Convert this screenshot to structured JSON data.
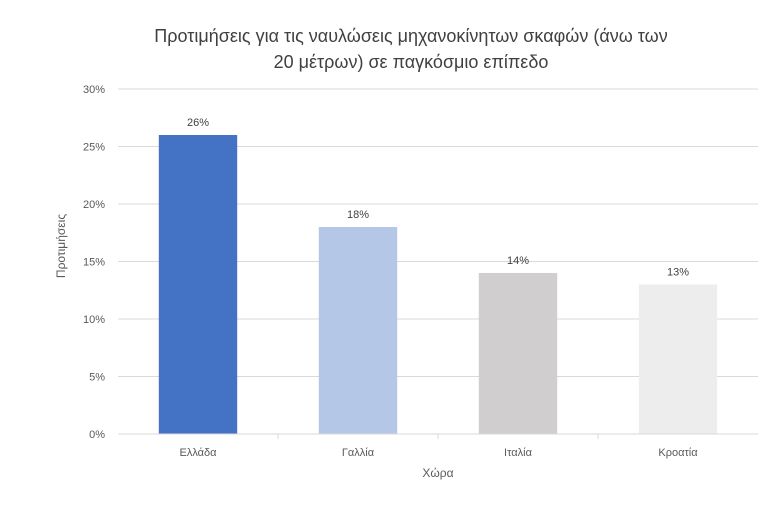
{
  "chart_data": {
    "type": "bar",
    "title_lines": [
      "Προτιμήσεις για τις ναυλώσεις μηχανοκίνητων σκαφών (άνω των",
      "20 μέτρων) σε παγκόσμιο επίπεδο"
    ],
    "xlabel": "Χώρα",
    "ylabel": "Προτιμήσεις",
    "categories": [
      "Ελλάδα",
      "Γαλλία",
      "Ιταλία",
      "Κροατία"
    ],
    "values": [
      26,
      18,
      14,
      13
    ],
    "data_labels": [
      "26%",
      "18%",
      "14%",
      "13%"
    ],
    "colors": [
      "#4472C4",
      "#B4C7E7",
      "#D0CECE",
      "#EDEDED"
    ],
    "ylim": [
      0,
      30
    ],
    "yticks": [
      0,
      5,
      10,
      15,
      20,
      25,
      30
    ],
    "ytick_labels": [
      "0%",
      "5%",
      "10%",
      "15%",
      "20%",
      "25%",
      "30%"
    ],
    "grid": true,
    "legend": "none"
  }
}
